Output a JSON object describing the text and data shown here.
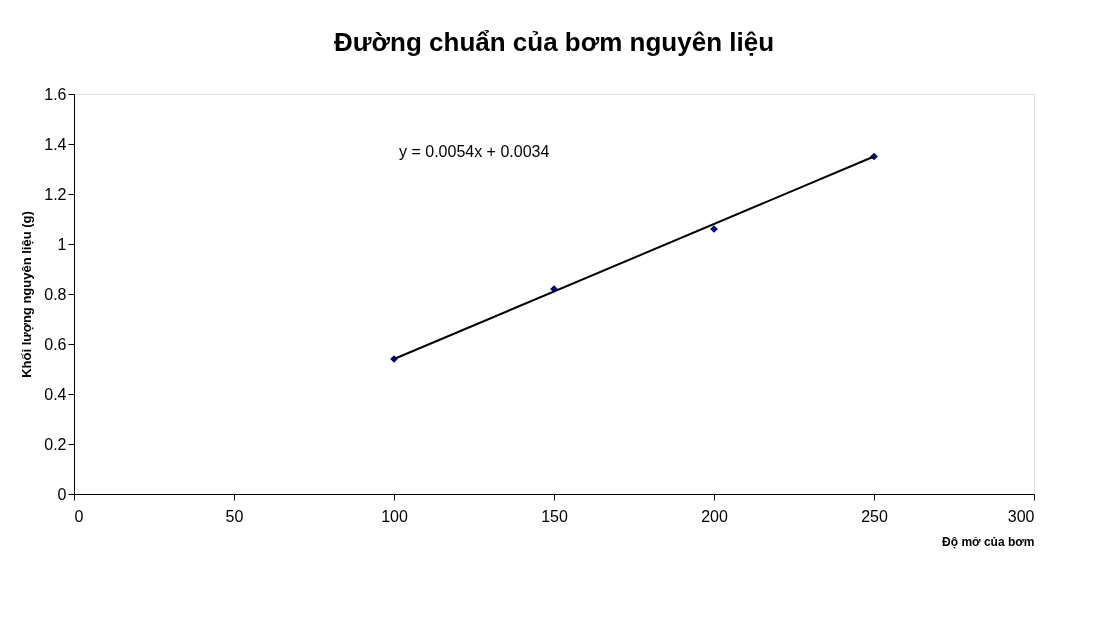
{
  "chart_data": {
    "type": "scatter",
    "title": "Đường chuẩn của bơm nguyên liệu",
    "xlabel": "Độ mở của bơm",
    "ylabel": "Khối lượng nguyên liệu (g)",
    "xlim": [
      0,
      300
    ],
    "xticks": [
      0,
      50,
      100,
      150,
      200,
      250,
      300
    ],
    "ylim": [
      0,
      1.6
    ],
    "yticks": [
      0,
      0.2,
      0.4,
      0.6,
      0.8,
      1,
      1.2,
      1.4,
      1.6
    ],
    "grid": false,
    "marker": "diamond",
    "annotations": [
      "y = 0.0054x + 0.0034"
    ],
    "series": [
      {
        "color": "#000080",
        "x": [
          100,
          150,
          200,
          250
        ],
        "values": [
          0.54,
          0.82,
          1.06,
          1.35
        ]
      },
      {
        "type": "line",
        "color": "#000000",
        "line_style": "solid",
        "marker": "none",
        "x": [
          100,
          250
        ],
        "values": [
          0.54,
          1.35
        ]
      }
    ]
  }
}
